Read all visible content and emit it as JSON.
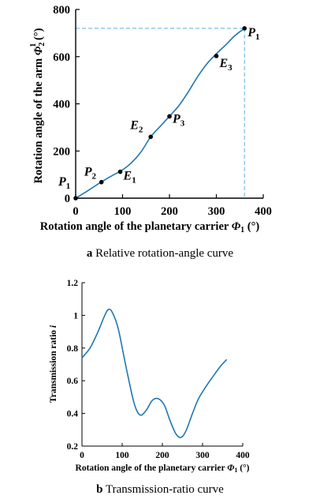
{
  "colors": {
    "curve": "#1f77b4",
    "marker": "#000000",
    "dashed": "#5aaee0"
  },
  "chart_data": [
    {
      "type": "line",
      "xlabel_main": "Rotation angle of the planetary carrier ",
      "xlabel_sym": "Φ",
      "xlabel_sub": "1",
      "xlabel_unit": " (°)",
      "ylabel_main": "Rotation angle of the arm ",
      "ylabel_sym": "Φ",
      "ylabel_sub": "2",
      "ylabel_sup": "1",
      "ylabel_unit": " (°)",
      "xlim": [
        0,
        400
      ],
      "ylim": [
        0,
        800
      ],
      "xticks": [
        0,
        100,
        200,
        300,
        400
      ],
      "yticks": [
        0,
        200,
        400,
        600,
        800
      ],
      "xtick_labels": [
        "0",
        "100",
        "200",
        "300",
        "400"
      ],
      "ytick_labels": [
        "0",
        "200",
        "400",
        "600",
        "800"
      ],
      "caption_letter": "a",
      "caption_text": " Relative rotation-angle curve",
      "series": [
        {
          "x": [
            0,
            20,
            40,
            60,
            80,
            100,
            120,
            140,
            160,
            180,
            200,
            220,
            240,
            260,
            280,
            300,
            320,
            340,
            360
          ],
          "y": [
            0,
            24,
            50,
            75,
            98,
            120,
            152,
            198,
            260,
            304,
            347,
            392,
            450,
            515,
            570,
            612,
            650,
            690,
            720
          ]
        }
      ],
      "points": [
        {
          "label": "P",
          "sub": "1",
          "x": 0,
          "y": 0
        },
        {
          "label": "P",
          "sub": "2",
          "x": 55,
          "y": 68
        },
        {
          "label": "E",
          "sub": "1",
          "x": 95,
          "y": 112
        },
        {
          "label": "E",
          "sub": "2",
          "x": 160,
          "y": 260
        },
        {
          "label": "P",
          "sub": "3",
          "x": 200,
          "y": 347
        },
        {
          "label": "E",
          "sub": "3",
          "x": 300,
          "y": 603
        },
        {
          "label": "P",
          "sub": "1",
          "x": 360,
          "y": 720
        }
      ],
      "reference_lines": {
        "x": 360,
        "y": 720
      }
    },
    {
      "type": "line",
      "xlabel_main": "Rotation angle of the planetary carrier ",
      "xlabel_sym": "Φ",
      "xlabel_sub": "1",
      "xlabel_unit": " (°)",
      "ylabel_main": "Transmission ratio ",
      "ylabel_sym": "i",
      "xlim": [
        0,
        400
      ],
      "ylim": [
        0.2,
        1.2
      ],
      "xticks": [
        0,
        100,
        200,
        300,
        400
      ],
      "yticks": [
        0.2,
        0.4,
        0.6,
        0.8,
        1.0,
        1.2
      ],
      "xtick_labels": [
        "0",
        "100",
        "200",
        "300",
        "400"
      ],
      "ytick_labels": [
        "0.2",
        "0.4",
        "0.6",
        "0.8",
        "1",
        "1.2"
      ],
      "caption_letter": "b",
      "caption_text": " Transmission-ratio curve",
      "series": [
        {
          "x": [
            0,
            20,
            40,
            55,
            65,
            75,
            90,
            110,
            130,
            145,
            160,
            175,
            190,
            205,
            220,
            235,
            248,
            260,
            275,
            290,
            310,
            330,
            345,
            360
          ],
          "y": [
            0.74,
            0.8,
            0.9,
            0.99,
            1.035,
            1.02,
            0.92,
            0.68,
            0.46,
            0.39,
            0.42,
            0.48,
            0.49,
            0.45,
            0.35,
            0.27,
            0.255,
            0.3,
            0.4,
            0.49,
            0.57,
            0.64,
            0.69,
            0.73
          ]
        }
      ]
    }
  ]
}
